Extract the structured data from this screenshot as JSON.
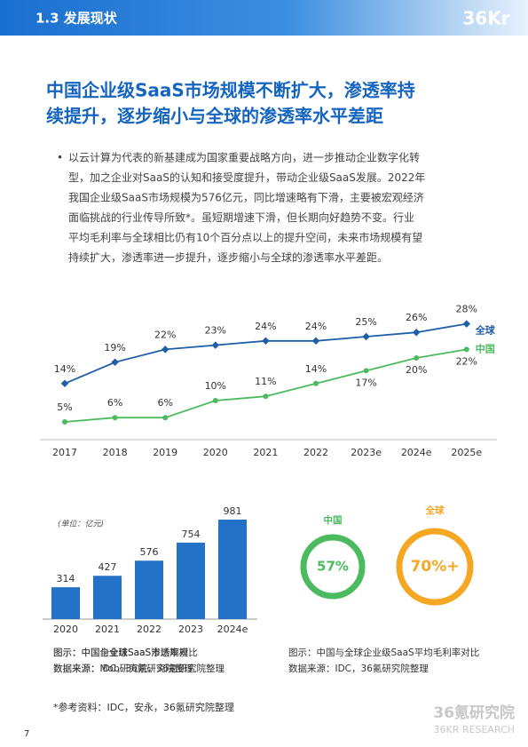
{
  "header": {
    "section": "1.3 发展现状",
    "logo": "36Kr"
  },
  "headline": [
    "中国企业级SaaS市场规模不断扩大，渗透率持",
    "续提升，逐步缩小与全球的渗透率水平差距"
  ],
  "body": {
    "bullet": "•",
    "lines": [
      "以云计算为代表的新基建成为国家重要战略方向，进一步推动企业数字化转",
      "型，加之企业对SaaS的认知和接受度提升，带动企业级SaaS发展。2022年",
      "我国企业级SaaS市场规模为576亿元，同比增速略有下滑，主要被宏观经济",
      "面临挑战的行业传导所致*。虽短期增速下滑，但长期向好趋势不变。行业",
      "平均毛利率与全球相比仍有10个百分点以上的提升空间，未来市场规模有望",
      "持续扩大，渗透率进一步提升，逐步缩小与全球的渗透率水平差距。"
    ]
  },
  "chart_data": [
    {
      "type": "line",
      "categories": [
        "2017",
        "2018",
        "2019",
        "2020",
        "2021",
        "2022",
        "2023e",
        "2024e",
        "2025e"
      ],
      "series": [
        {
          "name": "全球",
          "color": "#1f5fa8",
          "values": [
            14,
            19,
            22,
            23,
            24,
            24,
            25,
            26,
            28
          ],
          "value_labels": [
            "14%",
            "19%",
            "22%",
            "23%",
            "24%",
            "24%",
            "25%",
            "26%",
            "28%"
          ]
        },
        {
          "name": "中国",
          "color": "#4cbb5f",
          "values": [
            5,
            6,
            6,
            10,
            11,
            14,
            17,
            20,
            22
          ],
          "value_labels": [
            "5%",
            "6%",
            "6%",
            "10%",
            "11%",
            "14%",
            "17%",
            "20%",
            "22%"
          ]
        }
      ],
      "caption": "图示：中国与全球SaaS渗透率对比",
      "source": "数据来源：Mob研究院，36氪研究院整理"
    },
    {
      "type": "bar",
      "unit": "(单位：亿元)",
      "categories": [
        "2020",
        "2021",
        "2022",
        "2023",
        "2024e"
      ],
      "values": [
        314,
        427,
        576,
        754,
        981
      ],
      "color": "#2472c8",
      "caption": "图示：中国企业级SaaS市场规模",
      "source": "数据来源：IDC，36氪研究院整理"
    },
    {
      "type": "ring",
      "categories": [
        "中国",
        "全球"
      ],
      "values": [
        57,
        70
      ],
      "value_labels": [
        "57%",
        "70%+"
      ],
      "colors": [
        "#4cbb5f",
        "#f5a623"
      ],
      "caption": "图示：中国与全球企业级SaaS平均毛利率对比",
      "source": "数据来源：IDC，36氪研究院整理"
    }
  ],
  "footnote": "*参考资料：IDC，安永，36氪研究院整理",
  "page_number": "7",
  "watermark": {
    "cn": "36氪研究院",
    "en": "36KR RESEARCH"
  }
}
